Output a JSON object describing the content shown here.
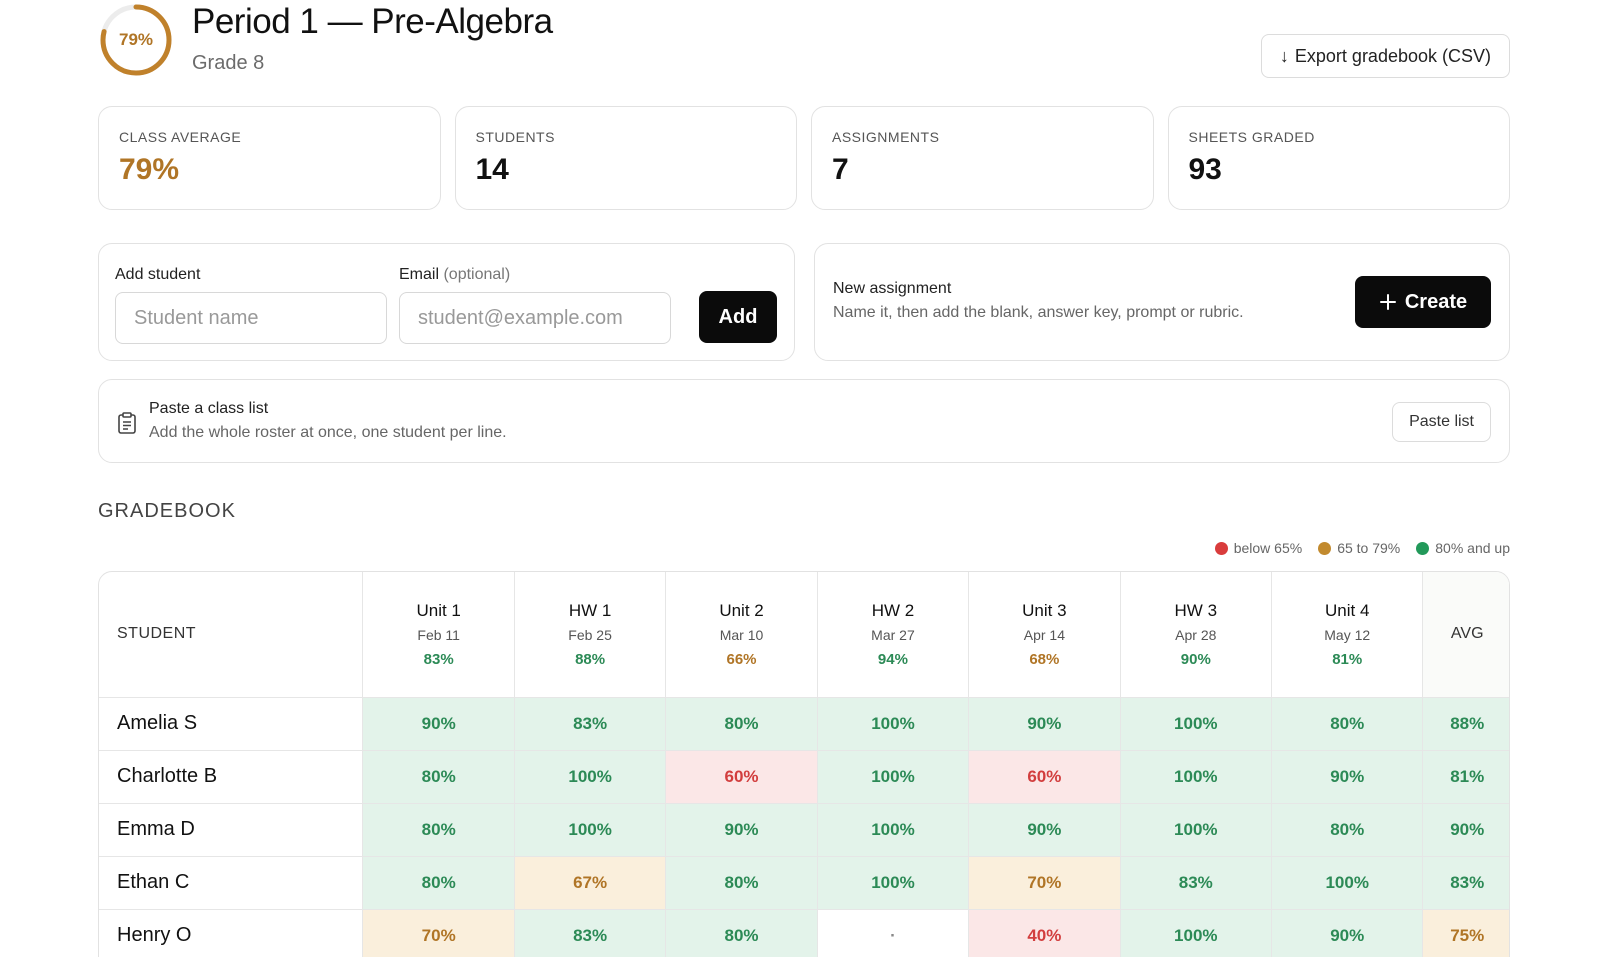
{
  "header": {
    "progress_label": "79%",
    "progress_fraction": 0.79,
    "title": "Period 1 — Pre-Algebra",
    "subtitle": "Grade 8",
    "export_label": "Export gradebook (CSV)",
    "export_icon": "arrow-down-icon"
  },
  "stats": [
    {
      "label": "CLASS AVERAGE",
      "value": "79%"
    },
    {
      "label": "STUDENTS",
      "value": "14"
    },
    {
      "label": "ASSIGNMENTS",
      "value": "7"
    },
    {
      "label": "SHEETS GRADED",
      "value": "93"
    }
  ],
  "add_student": {
    "name_label": "Add student",
    "email_label": "Email",
    "email_optional": "(optional)",
    "name_placeholder": "Student name",
    "email_placeholder": "student@example.com",
    "add_label": "Add"
  },
  "new_assignment": {
    "title": "New assignment",
    "description": "Name it, then add the blank, answer key, prompt or rubric.",
    "create_label": "Create",
    "create_icon": "plus-icon"
  },
  "paste": {
    "icon": "clipboard-icon",
    "title": "Paste a class list",
    "description": "Add the whole roster at once, one student per line.",
    "button_label": "Paste list"
  },
  "gradebook": {
    "title": "GRADEBOOK",
    "legend": [
      {
        "label": "below 65%",
        "color": "#d93c3c"
      },
      {
        "label": "65 to 79%",
        "color": "#c28a2e"
      },
      {
        "label": "80% and up",
        "color": "#22995a"
      }
    ],
    "student_header": "STUDENT",
    "avg_header": "AVG",
    "columns": [
      {
        "name": "Unit 1",
        "date": "Feb 11",
        "avg": "83%",
        "band": "g"
      },
      {
        "name": "HW 1",
        "date": "Feb 25",
        "avg": "88%",
        "band": "g"
      },
      {
        "name": "Unit 2",
        "date": "Mar 10",
        "avg": "66%",
        "band": "y"
      },
      {
        "name": "HW 2",
        "date": "Mar 27",
        "avg": "94%",
        "band": "g"
      },
      {
        "name": "Unit 3",
        "date": "Apr 14",
        "avg": "68%",
        "band": "y"
      },
      {
        "name": "HW 3",
        "date": "Apr 28",
        "avg": "90%",
        "band": "g"
      },
      {
        "name": "Unit 4",
        "date": "May 12",
        "avg": "81%",
        "band": "g"
      }
    ],
    "rows": [
      {
        "name": "Amelia S",
        "scores": [
          "90%",
          "83%",
          "80%",
          "100%",
          "90%",
          "100%",
          "80%"
        ],
        "bands": [
          "g",
          "g",
          "g",
          "g",
          "g",
          "g",
          "g"
        ],
        "avg": "88%",
        "avg_band": "g"
      },
      {
        "name": "Charlotte B",
        "scores": [
          "80%",
          "100%",
          "60%",
          "100%",
          "60%",
          "100%",
          "90%"
        ],
        "bands": [
          "g",
          "g",
          "r",
          "g",
          "r",
          "g",
          "g"
        ],
        "avg": "81%",
        "avg_band": "g"
      },
      {
        "name": "Emma D",
        "scores": [
          "80%",
          "100%",
          "90%",
          "100%",
          "90%",
          "100%",
          "80%"
        ],
        "bands": [
          "g",
          "g",
          "g",
          "g",
          "g",
          "g",
          "g"
        ],
        "avg": "90%",
        "avg_band": "g"
      },
      {
        "name": "Ethan C",
        "scores": [
          "80%",
          "67%",
          "80%",
          "100%",
          "70%",
          "83%",
          "100%"
        ],
        "bands": [
          "g",
          "y",
          "g",
          "g",
          "y",
          "g",
          "g"
        ],
        "avg": "83%",
        "avg_band": "g"
      },
      {
        "name": "Henry O",
        "scores": [
          "70%",
          "83%",
          "80%",
          "·",
          "40%",
          "100%",
          "90%"
        ],
        "bands": [
          "y",
          "g",
          "g",
          "e",
          "r",
          "g",
          "g"
        ],
        "avg": "75%",
        "avg_band": "y"
      }
    ]
  }
}
